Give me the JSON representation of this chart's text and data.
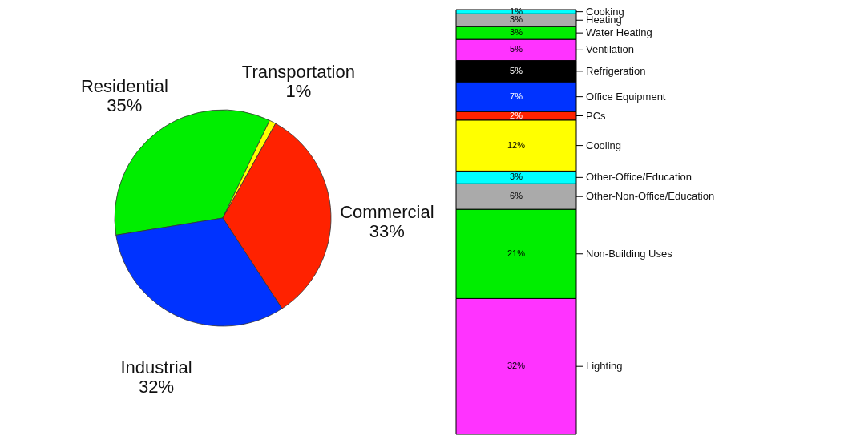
{
  "chart_data": [
    {
      "type": "pie",
      "categories": [
        "Residential",
        "Transportation",
        "Commercial",
        "Industrial"
      ],
      "values": [
        35,
        1,
        33,
        32
      ],
      "colors": [
        "#00ee00",
        "#ffff00",
        "#ff2200",
        "#0033ff"
      ],
      "value_labels": [
        "35%",
        "1%",
        "33%",
        "32%"
      ]
    },
    {
      "type": "bar",
      "stacked": true,
      "categories": [
        null
      ],
      "tick_labels": false,
      "legend": "right",
      "series": [
        {
          "name": "Lighting",
          "color": "#ff33ff",
          "values": [
            32
          ],
          "value_labels": [
            "32%"
          ]
        },
        {
          "name": "Non-Building Uses",
          "color": "#00ee00",
          "values": [
            21
          ],
          "value_labels": [
            "21%"
          ]
        },
        {
          "name": "Other-Non-Office/Education",
          "color": "#aaaaaa",
          "values": [
            6
          ],
          "value_labels": [
            "6%"
          ]
        },
        {
          "name": "Other-Office/Education",
          "color": "#00ffff",
          "values": [
            3
          ],
          "value_labels": [
            "3%"
          ]
        },
        {
          "name": "Cooling",
          "color": "#ffff00",
          "values": [
            12
          ],
          "value_labels": [
            "12%"
          ]
        },
        {
          "name": "PCs",
          "color": "#ff2200",
          "values": [
            2
          ],
          "value_labels": [
            "2%"
          ]
        },
        {
          "name": "Office Equipment",
          "color": "#0033ff",
          "values": [
            7
          ],
          "value_labels": [
            "7%"
          ]
        },
        {
          "name": "Refrigeration",
          "color": "#000000",
          "values": [
            5
          ],
          "value_labels": [
            "5%"
          ]
        },
        {
          "name": "Ventilation",
          "color": "#ff33ff",
          "values": [
            5
          ],
          "value_labels": [
            "5%"
          ]
        },
        {
          "name": "Water Heating",
          "color": "#00ee00",
          "values": [
            3
          ],
          "value_labels": [
            "3%"
          ]
        },
        {
          "name": "Heating",
          "color": "#aaaaaa",
          "values": [
            3
          ],
          "value_labels": [
            "3%"
          ]
        },
        {
          "name": "Cooking",
          "color": "#00ffff",
          "values": [
            1
          ],
          "value_labels": [
            "1%"
          ]
        }
      ]
    }
  ]
}
